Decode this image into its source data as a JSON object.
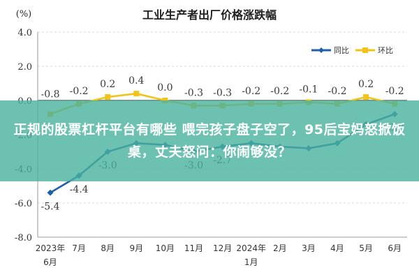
{
  "chart_data": {
    "type": "line",
    "title": "工业生产者出厂价格涨跌幅",
    "ylabel": "(%)",
    "ylim": [
      -8.0,
      4.0
    ],
    "yticks": [
      "4.0",
      "2.0",
      "0.0",
      "-2.0",
      "-4.0",
      "-6.0",
      "-8.0"
    ],
    "yticks_values": [
      4,
      2,
      0,
      -2,
      -4,
      -6,
      -8
    ],
    "grid": true,
    "legend_position": "top-right",
    "categories": [
      [
        "2023年",
        "6月"
      ],
      [
        "7月"
      ],
      [
        "8月"
      ],
      [
        "9月"
      ],
      [
        "10月"
      ],
      [
        "11月"
      ],
      [
        "12月"
      ],
      [
        "2024年",
        "1月"
      ],
      [
        "2月"
      ],
      [
        "3月"
      ],
      [
        "4月"
      ],
      [
        "5月"
      ],
      [
        "6月"
      ]
    ],
    "series": [
      {
        "name": "同比",
        "color": "#1f5fa8",
        "values": [
          -5.4,
          -4.4,
          -3.0,
          -2.5,
          -2.6,
          -3.0,
          -2.7,
          -2.5,
          -2.7,
          -2.8,
          -2.5,
          -1.4,
          -0.8
        ],
        "labels": [
          "-5.4",
          "-4.4",
          "-3.0",
          "",
          "",
          "-3.0",
          "-2.7",
          "",
          "",
          "",
          "",
          "",
          "-0.8"
        ]
      },
      {
        "name": "环比",
        "color": "#f0c419",
        "values": [
          -0.8,
          -0.2,
          0.2,
          0.4,
          0.0,
          -0.3,
          -0.3,
          -0.2,
          -0.2,
          -0.1,
          -0.2,
          0.2,
          -0.2
        ],
        "labels": [
          "-0.8",
          "-0.2",
          "0.2",
          "0.4",
          "0.0",
          "-0.3",
          "-0.3",
          "-0.2",
          "-0.2",
          "-0.1",
          "-0.2",
          "0.2",
          "-0.2"
        ]
      }
    ]
  },
  "overlay": {
    "text": "正规的股票杠杆平台有哪些 喂完孩子盘子空了，95后宝妈怒掀饭桌，丈夫怒问：你闹够没？",
    "color": "#48b29e"
  }
}
